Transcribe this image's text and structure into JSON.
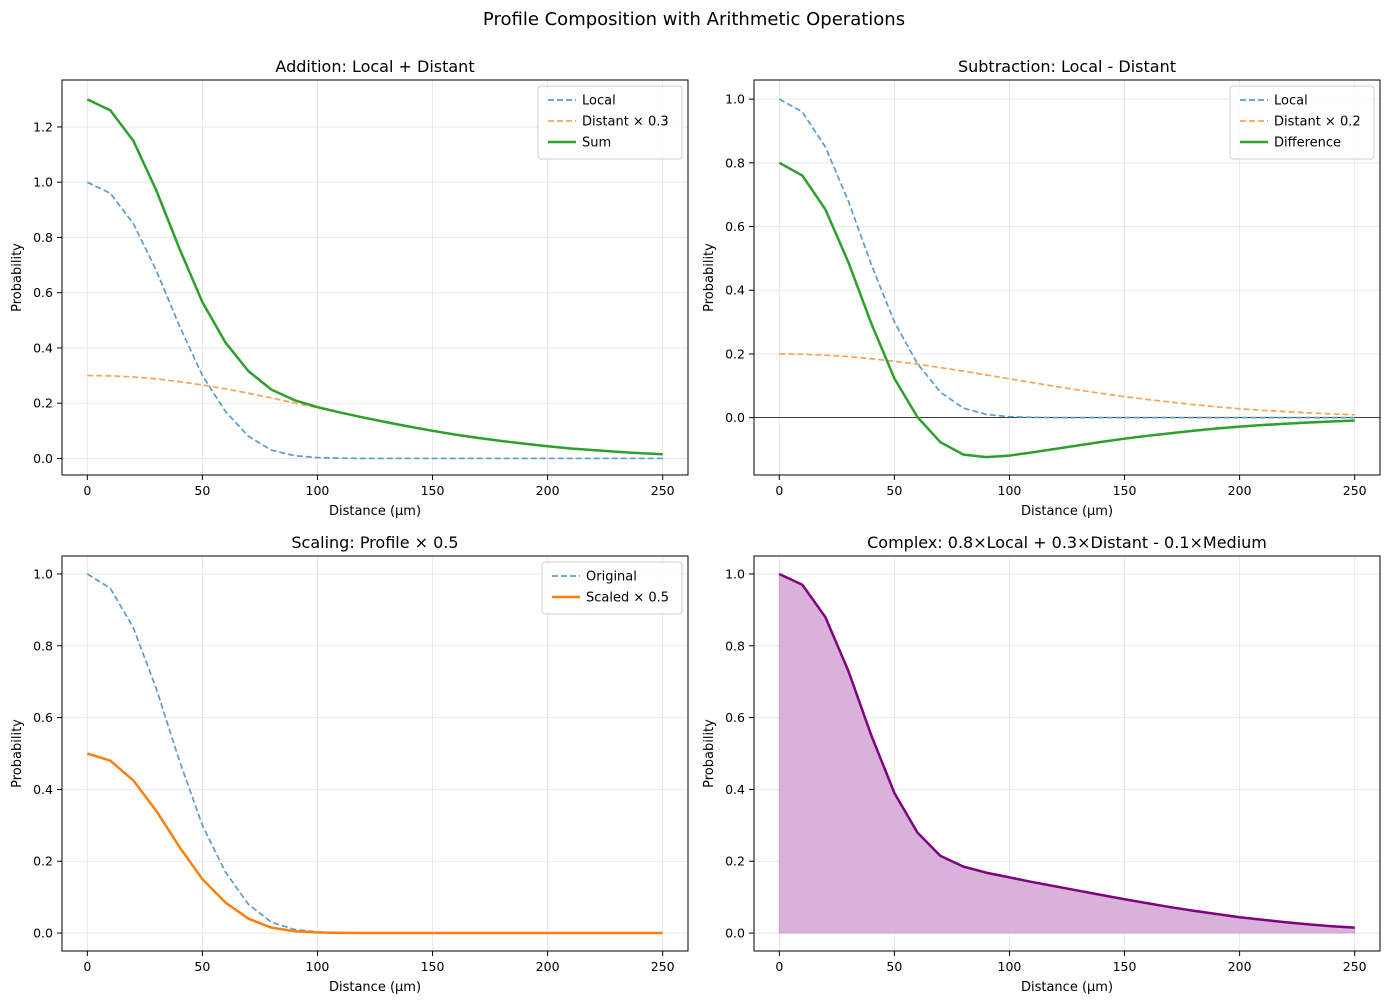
{
  "figure": {
    "title": "Profile Composition with Arithmetic Operations"
  },
  "chart_data": [
    {
      "type": "line",
      "title": "Addition: Local + Distant",
      "xlabel": "Distance (µm)",
      "ylabel": "Probability",
      "xlim": [
        -11,
        261
      ],
      "ylim": [
        -0.06,
        1.37
      ],
      "xticks": [
        0,
        50,
        100,
        150,
        200,
        250
      ],
      "yticks": [
        0.0,
        0.2,
        0.4,
        0.6,
        0.8,
        1.0,
        1.2
      ],
      "grid": true,
      "legend": "top-right",
      "zero_line": false,
      "x": [
        0,
        10,
        20,
        30,
        40,
        50,
        60,
        70,
        80,
        90,
        100,
        110,
        120,
        130,
        140,
        150,
        160,
        170,
        180,
        190,
        200,
        210,
        220,
        230,
        240,
        250
      ],
      "series": [
        {
          "name": "Local",
          "style": "dashed",
          "color": "#5a9ec9",
          "width": 1.7,
          "values": [
            1.0,
            0.96,
            0.85,
            0.68,
            0.48,
            0.3,
            0.17,
            0.08,
            0.03,
            0.01,
            0.003,
            0.001,
            0,
            0,
            0,
            0,
            0,
            0,
            0,
            0,
            0,
            0,
            0,
            0,
            0,
            0
          ]
        },
        {
          "name": "Distant × 0.3",
          "style": "dashed",
          "color": "#f5a55a",
          "width": 1.7,
          "values": [
            0.3,
            0.299,
            0.295,
            0.288,
            0.278,
            0.266,
            0.252,
            0.236,
            0.219,
            0.201,
            0.183,
            0.165,
            0.148,
            0.131,
            0.115,
            0.1,
            0.086,
            0.074,
            0.063,
            0.053,
            0.044,
            0.036,
            0.03,
            0.024,
            0.019,
            0.015
          ]
        },
        {
          "name": "Sum",
          "style": "solid",
          "color": "#2ca02c",
          "width": 2.5,
          "values": [
            1.3,
            1.26,
            1.15,
            0.97,
            0.76,
            0.566,
            0.42,
            0.316,
            0.249,
            0.211,
            0.186,
            0.166,
            0.148,
            0.131,
            0.115,
            0.1,
            0.086,
            0.074,
            0.063,
            0.053,
            0.044,
            0.036,
            0.03,
            0.024,
            0.019,
            0.015
          ]
        }
      ]
    },
    {
      "type": "line",
      "title": "Subtraction: Local - Distant",
      "xlabel": "Distance (µm)",
      "ylabel": "Probability",
      "xlim": [
        -11,
        261
      ],
      "ylim": [
        -0.18,
        1.06
      ],
      "xticks": [
        0,
        50,
        100,
        150,
        200,
        250
      ],
      "yticks": [
        0.0,
        0.2,
        0.4,
        0.6,
        0.8,
        1.0
      ],
      "grid": true,
      "legend": "top-right",
      "zero_line": true,
      "x": [
        0,
        10,
        20,
        30,
        40,
        50,
        60,
        70,
        80,
        90,
        100,
        110,
        120,
        130,
        140,
        150,
        160,
        170,
        180,
        190,
        200,
        210,
        220,
        230,
        240,
        250
      ],
      "series": [
        {
          "name": "Local",
          "style": "dashed",
          "color": "#5a9ec9",
          "width": 1.7,
          "values": [
            1.0,
            0.96,
            0.85,
            0.68,
            0.48,
            0.3,
            0.17,
            0.08,
            0.03,
            0.01,
            0.003,
            0.001,
            0,
            0,
            0,
            0,
            0,
            0,
            0,
            0,
            0,
            0,
            0,
            0,
            0,
            0
          ]
        },
        {
          "name": "Distant × 0.2",
          "style": "dashed",
          "color": "#f5a55a",
          "width": 1.7,
          "values": [
            0.2,
            0.199,
            0.196,
            0.192,
            0.185,
            0.177,
            0.168,
            0.157,
            0.146,
            0.134,
            0.122,
            0.11,
            0.098,
            0.087,
            0.076,
            0.066,
            0.057,
            0.049,
            0.041,
            0.034,
            0.028,
            0.023,
            0.019,
            0.015,
            0.012,
            0.009
          ]
        },
        {
          "name": "Difference",
          "style": "solid",
          "color": "#2ca02c",
          "width": 2.5,
          "values": [
            0.8,
            0.76,
            0.654,
            0.488,
            0.295,
            0.123,
            0.002,
            -0.077,
            -0.116,
            -0.124,
            -0.119,
            -0.109,
            -0.098,
            -0.087,
            -0.076,
            -0.066,
            -0.057,
            -0.049,
            -0.041,
            -0.034,
            -0.028,
            -0.023,
            -0.019,
            -0.015,
            -0.012,
            -0.009
          ]
        }
      ]
    },
    {
      "type": "line",
      "title": "Scaling: Profile × 0.5",
      "xlabel": "Distance (µm)",
      "ylabel": "Probability",
      "xlim": [
        -11,
        261
      ],
      "ylim": [
        -0.05,
        1.05
      ],
      "xticks": [
        0,
        50,
        100,
        150,
        200,
        250
      ],
      "yticks": [
        0.0,
        0.2,
        0.4,
        0.6,
        0.8,
        1.0
      ],
      "grid": true,
      "legend": "top-right",
      "zero_line": false,
      "x": [
        0,
        10,
        20,
        30,
        40,
        50,
        60,
        70,
        80,
        90,
        100,
        110,
        120,
        130,
        140,
        150,
        160,
        170,
        180,
        190,
        200,
        210,
        220,
        230,
        240,
        250
      ],
      "series": [
        {
          "name": "Original",
          "style": "dashed",
          "color": "#5a9ec9",
          "width": 1.7,
          "values": [
            1.0,
            0.96,
            0.85,
            0.68,
            0.48,
            0.3,
            0.17,
            0.08,
            0.03,
            0.01,
            0.003,
            0.001,
            0,
            0,
            0,
            0,
            0,
            0,
            0,
            0,
            0,
            0,
            0,
            0,
            0,
            0
          ]
        },
        {
          "name": "Scaled × 0.5",
          "style": "solid",
          "color": "#ff7f0e",
          "width": 2.5,
          "values": [
            0.5,
            0.48,
            0.425,
            0.34,
            0.24,
            0.15,
            0.085,
            0.04,
            0.015,
            0.005,
            0.0015,
            0.0005,
            0,
            0,
            0,
            0,
            0,
            0,
            0,
            0,
            0,
            0,
            0,
            0,
            0,
            0
          ]
        }
      ]
    },
    {
      "type": "area",
      "title": "Complex: 0.8×Local + 0.3×Distant - 0.1×Medium",
      "xlabel": "Distance (µm)",
      "ylabel": "Probability",
      "xlim": [
        -11,
        261
      ],
      "ylim": [
        -0.05,
        1.05
      ],
      "xticks": [
        0,
        50,
        100,
        150,
        200,
        250
      ],
      "yticks": [
        0.0,
        0.2,
        0.4,
        0.6,
        0.8,
        1.0
      ],
      "grid": true,
      "legend": "none",
      "zero_line": false,
      "x": [
        0,
        10,
        20,
        30,
        40,
        50,
        60,
        70,
        80,
        90,
        100,
        110,
        120,
        130,
        140,
        150,
        160,
        170,
        180,
        190,
        200,
        210,
        220,
        230,
        240,
        250
      ],
      "series": [
        {
          "style": "solid",
          "color": "#800080",
          "fill": "#d8b2d8",
          "width": 2.5,
          "values": [
            1.0,
            0.97,
            0.88,
            0.73,
            0.55,
            0.39,
            0.28,
            0.215,
            0.185,
            0.168,
            0.155,
            0.142,
            0.13,
            0.118,
            0.106,
            0.094,
            0.083,
            0.072,
            0.062,
            0.053,
            0.044,
            0.037,
            0.03,
            0.024,
            0.019,
            0.015
          ]
        }
      ]
    }
  ]
}
